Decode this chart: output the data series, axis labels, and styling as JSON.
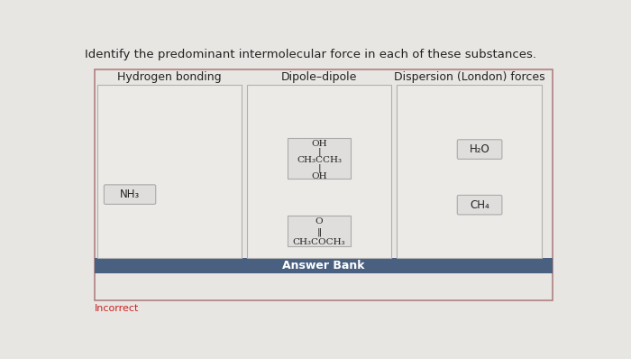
{
  "title": "Identify the predominant intermolecular force in each of these substances.",
  "title_fontsize": 9.5,
  "bg_color": "#e8e6e3",
  "columns": [
    "Hydrogen bonding",
    "Dipole–dipole",
    "Dispersion (London) forces"
  ],
  "col_header_fontsize": 9,
  "outer_border_color": "#b08080",
  "outer_bg": "#e8e6e3",
  "col_bg": "#eceae7",
  "item_bg": "#e0dedd",
  "item_border": "#aaaaaa",
  "answer_bank_bg": "#4a6080",
  "answer_bank_text": "Answer Bank",
  "answer_bank_fontsize": 9,
  "answer_bank_text_color": "#ffffff",
  "incorrect_text": "Incorrect",
  "incorrect_color": "#cc2222",
  "incorrect_fontsize": 8,
  "col1_item": "NH₃",
  "col2_item1_lines": [
    "OH",
    "|",
    "CH₃CCH₃",
    "|",
    "OH"
  ],
  "col2_item2_lines": [
    "O",
    "‖",
    "CH₃COCH₃"
  ],
  "col3_item1": "H₂O",
  "col3_item2": "CH₄"
}
